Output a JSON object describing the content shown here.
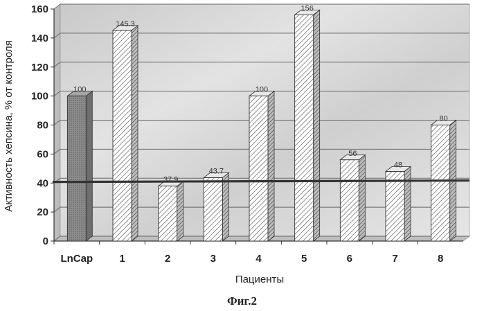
{
  "chart_data": {
    "type": "bar",
    "categories": [
      "LnCap",
      "1",
      "2",
      "3",
      "4",
      "5",
      "6",
      "7",
      "8"
    ],
    "values": [
      100,
      145.3,
      37.9,
      43.7,
      100,
      156,
      56,
      48,
      80
    ],
    "data_labels": [
      "100",
      "145.3",
      "37.9",
      "43.7",
      "100",
      "156",
      "56",
      "48",
      "80"
    ],
    "xlabel": "Пациенты",
    "ylabel": "Активность хепсина, % от контроля",
    "ylim": [
      0,
      160
    ],
    "yticks": [
      0,
      20,
      40,
      60,
      80,
      100,
      120,
      140,
      160
    ],
    "reference_line": 41,
    "grid": true,
    "legend": "none",
    "colors": {
      "control_bar": "#8c8c8c",
      "sample_bar": "#ffffff",
      "hatch": "#555555",
      "reference_line": "#333333",
      "plot_background": "#d7d7d7"
    }
  },
  "caption": "Фиг.2"
}
